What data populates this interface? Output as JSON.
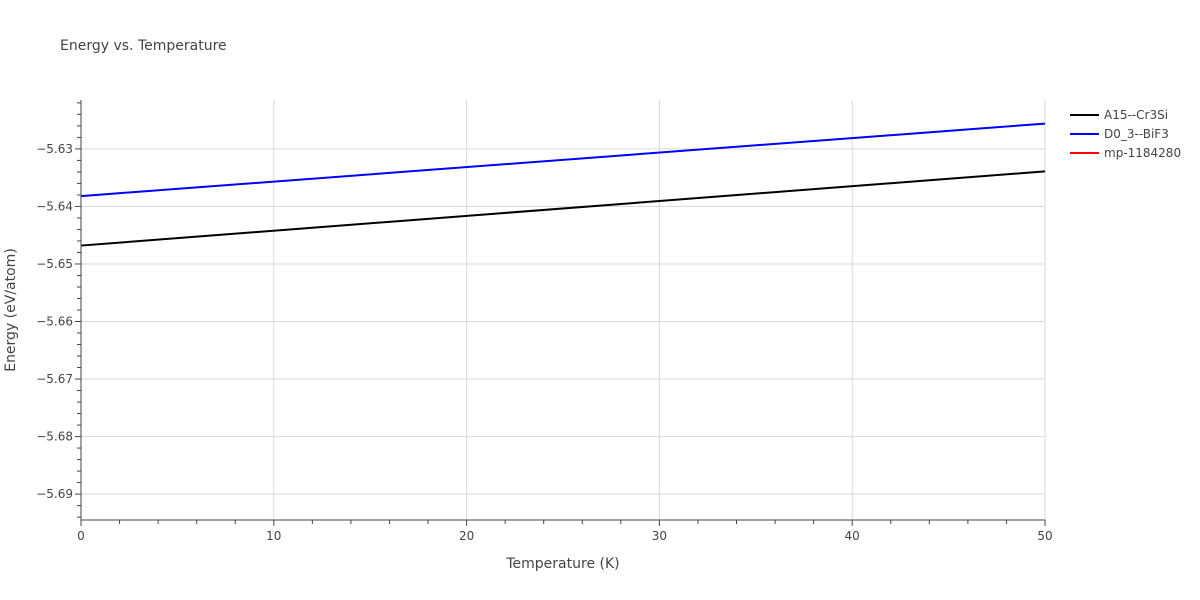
{
  "chart_data": {
    "type": "line",
    "title": "Energy vs. Temperature",
    "xlabel": "Temperature (K)",
    "ylabel": "Energy (eV/atom)",
    "xlim": [
      0,
      50
    ],
    "ylim": [
      -5.6945,
      -5.6215
    ],
    "x_ticks": [
      0,
      10,
      20,
      30,
      40,
      50
    ],
    "x_tick_labels": [
      "0",
      "10",
      "20",
      "30",
      "40",
      "50"
    ],
    "y_ticks": [
      -5.69,
      -5.68,
      -5.67,
      -5.66,
      -5.65,
      -5.64,
      -5.63
    ],
    "y_tick_labels": [
      "−5.69",
      "−5.68",
      "−5.67",
      "−5.66",
      "−5.65",
      "−5.64",
      "−5.63"
    ],
    "grid": true,
    "legend_position": "top-right",
    "series": [
      {
        "name": "A15--Cr3Si",
        "color": "#000000",
        "x": [
          0,
          50
        ],
        "y": [
          -5.6468,
          -5.6339
        ]
      },
      {
        "name": "D0_3--BiF3",
        "color": "#0000ff",
        "x": [
          0,
          50
        ],
        "y": [
          -5.6382,
          -5.6256
        ]
      },
      {
        "name": "mp-1184280",
        "color": "#ff0000",
        "x": [],
        "y": []
      }
    ]
  }
}
